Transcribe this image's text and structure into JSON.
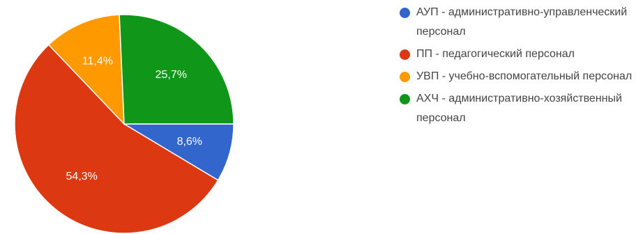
{
  "chart_data": {
    "type": "pie",
    "title": "",
    "slices": [
      {
        "name": "АУП - административно-управленческий персонал",
        "value": 8.6,
        "label": "8,6%",
        "color": "#3366cc"
      },
      {
        "name": "ПП - педагогический персонал",
        "value": 54.3,
        "label": "54,3%",
        "color": "#dc3912"
      },
      {
        "name": "УВП - учебно-вспомогательный персонал",
        "value": 11.4,
        "label": "11,4%",
        "color": "#ff9900"
      },
      {
        "name": "АХЧ - административно-хозяйственный персонал",
        "value": 25.7,
        "label": "25,7%",
        "color": "#109618"
      }
    ],
    "legend_position": "right"
  },
  "legend": {
    "items": [
      {
        "text": "АУП - административно-управленческий персонал",
        "color": "#3366cc"
      },
      {
        "text": "ПП - педагогический персонал",
        "color": "#dc3912"
      },
      {
        "text": "УВП - учебно-вспомогательный персонал",
        "color": "#ff9900"
      },
      {
        "text": "АХЧ - административно-хозяйственный персонал",
        "color": "#109618"
      }
    ]
  }
}
